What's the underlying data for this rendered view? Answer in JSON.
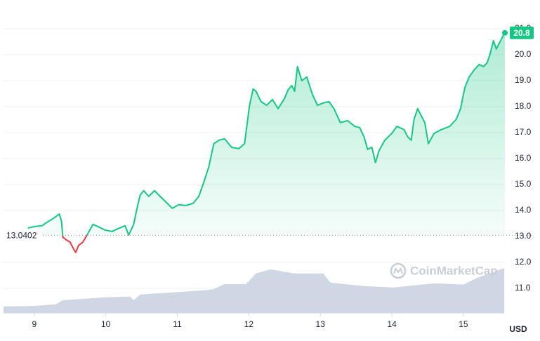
{
  "chart_data": {
    "type": "line",
    "xlim": [
      8.57,
      15.57
    ],
    "ylim": [
      10.05,
      21.97
    ],
    "xticks": [
      9,
      10,
      11,
      12,
      13,
      14,
      15
    ],
    "yticks": [
      {
        "value": 11,
        "label": "11.0"
      },
      {
        "value": 12,
        "label": "12.0"
      },
      {
        "value": 13,
        "label": "13.0"
      },
      {
        "value": 14,
        "label": "14.0"
      },
      {
        "value": 15,
        "label": "15.0"
      },
      {
        "value": 16,
        "label": "16.0"
      },
      {
        "value": 17,
        "label": "17.0"
      },
      {
        "value": 18,
        "label": "18.0"
      },
      {
        "value": 19,
        "label": "19.0"
      },
      {
        "value": 20,
        "label": "20.0"
      },
      {
        "value": 21,
        "label": "21.0"
      }
    ],
    "grid": true,
    "currency": "USD",
    "watermark": "CoinMarketCap",
    "baseline": 13.0402,
    "price": {
      "up_color": "#16c784",
      "down_color": "#ea3943",
      "x": [
        8.91,
        9.01,
        9.11,
        9.16,
        9.26,
        9.35,
        9.38,
        9.4,
        9.45,
        9.5,
        9.55,
        9.58,
        9.62,
        9.68,
        9.75,
        9.82,
        9.89,
        9.99,
        10.09,
        10.19,
        10.27,
        10.32,
        10.39,
        10.43,
        10.48,
        10.53,
        10.6,
        10.68,
        10.76,
        10.86,
        10.93,
        11.02,
        11.12,
        11.22,
        11.3,
        11.37,
        11.44,
        11.51,
        11.58,
        11.66,
        11.76,
        11.86,
        11.94,
        12.01,
        12.06,
        12.1,
        12.17,
        12.25,
        12.33,
        12.41,
        12.5,
        12.55,
        12.6,
        12.64,
        12.68,
        12.74,
        12.81,
        12.89,
        12.96,
        13.04,
        13.12,
        13.19,
        13.28,
        13.38,
        13.48,
        13.55,
        13.61,
        13.66,
        13.72,
        13.77,
        13.82,
        13.9,
        14.0,
        14.07,
        14.17,
        14.22,
        14.27,
        14.31,
        14.36,
        14.41,
        14.46,
        14.51,
        14.59,
        14.69,
        14.81,
        14.9,
        14.96,
        15.02,
        15.08,
        15.15,
        15.22,
        15.28,
        15.33,
        15.37,
        15.42,
        15.46,
        15.52,
        15.56,
        15.58
      ],
      "values": [
        13.32,
        13.38,
        13.41,
        13.51,
        13.68,
        13.86,
        13.59,
        12.97,
        12.86,
        12.78,
        12.51,
        12.38,
        12.65,
        12.78,
        13.11,
        13.46,
        13.38,
        13.24,
        13.19,
        13.32,
        13.41,
        13.05,
        13.46,
        14.0,
        14.59,
        14.76,
        14.54,
        14.76,
        14.54,
        14.27,
        14.08,
        14.22,
        14.19,
        14.27,
        14.54,
        15.08,
        15.68,
        16.57,
        16.7,
        16.76,
        16.43,
        16.38,
        16.57,
        18.05,
        18.68,
        18.59,
        18.19,
        18.05,
        18.27,
        17.92,
        18.32,
        18.65,
        18.81,
        18.59,
        19.54,
        19.0,
        19.14,
        18.46,
        18.05,
        18.14,
        18.19,
        17.92,
        17.38,
        17.46,
        17.24,
        17.19,
        16.84,
        16.35,
        16.43,
        15.84,
        16.3,
        16.7,
        16.97,
        17.24,
        17.11,
        16.84,
        16.7,
        17.51,
        17.92,
        17.65,
        17.38,
        16.57,
        16.97,
        17.11,
        17.24,
        17.51,
        17.92,
        18.73,
        19.14,
        19.41,
        19.62,
        19.54,
        19.68,
        20.0,
        20.54,
        20.22,
        20.54,
        20.76,
        20.84
      ],
      "last_label": "20.8"
    },
    "volume": {
      "color": "#cfd6e4",
      "x": [
        8.57,
        9.0,
        9.3,
        9.4,
        9.99,
        10.34,
        10.39,
        10.48,
        10.93,
        11.37,
        11.51,
        11.66,
        11.96,
        12.01,
        12.1,
        12.3,
        12.64,
        13.04,
        13.14,
        13.63,
        14.02,
        14.41,
        14.61,
        15.0,
        15.2,
        15.57
      ],
      "values": [
        10.3,
        10.32,
        10.38,
        10.54,
        10.65,
        10.68,
        10.54,
        10.76,
        10.84,
        10.92,
        10.97,
        11.16,
        11.16,
        11.3,
        11.57,
        11.73,
        11.57,
        11.57,
        11.22,
        11.08,
        11.03,
        11.14,
        11.19,
        11.14,
        11.41,
        11.78
      ]
    }
  }
}
